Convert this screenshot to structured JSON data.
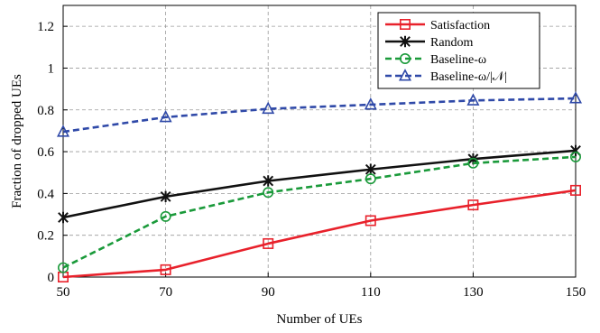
{
  "chart_data": {
    "type": "line",
    "title": "",
    "xlabel": "Number of UEs",
    "ylabel": "Fraction of dropped UEs",
    "x": [
      50,
      70,
      90,
      110,
      130,
      150
    ],
    "xticks": [
      "50",
      "70",
      "90",
      "110",
      "130",
      "150"
    ],
    "yticks": [
      "0",
      "0.2",
      "0.4",
      "0.6",
      "0.8",
      "1",
      "1.2"
    ],
    "xlim": [
      50,
      150
    ],
    "ylim": [
      0,
      1.3
    ],
    "grid": true,
    "legend_position": "top-right",
    "series": [
      {
        "name": "Satisfaction",
        "color": "#e8212b",
        "dash": "solid",
        "marker": "square",
        "values": [
          0.0,
          0.035,
          0.16,
          0.27,
          0.345,
          0.415
        ]
      },
      {
        "name": "Random",
        "color": "#111111",
        "dash": "solid",
        "marker": "star",
        "values": [
          0.285,
          0.385,
          0.46,
          0.515,
          0.565,
          0.605
        ]
      },
      {
        "name": "Baseline-ω",
        "color": "#1a9a3a",
        "dash": "dashed",
        "marker": "circle",
        "values": [
          0.045,
          0.29,
          0.405,
          0.47,
          0.545,
          0.575
        ]
      },
      {
        "name": "Baseline-ω/|𝒩|",
        "color": "#2f49a8",
        "dash": "dashed",
        "marker": "triangle",
        "values": [
          0.695,
          0.765,
          0.805,
          0.825,
          0.845,
          0.855
        ]
      }
    ]
  }
}
